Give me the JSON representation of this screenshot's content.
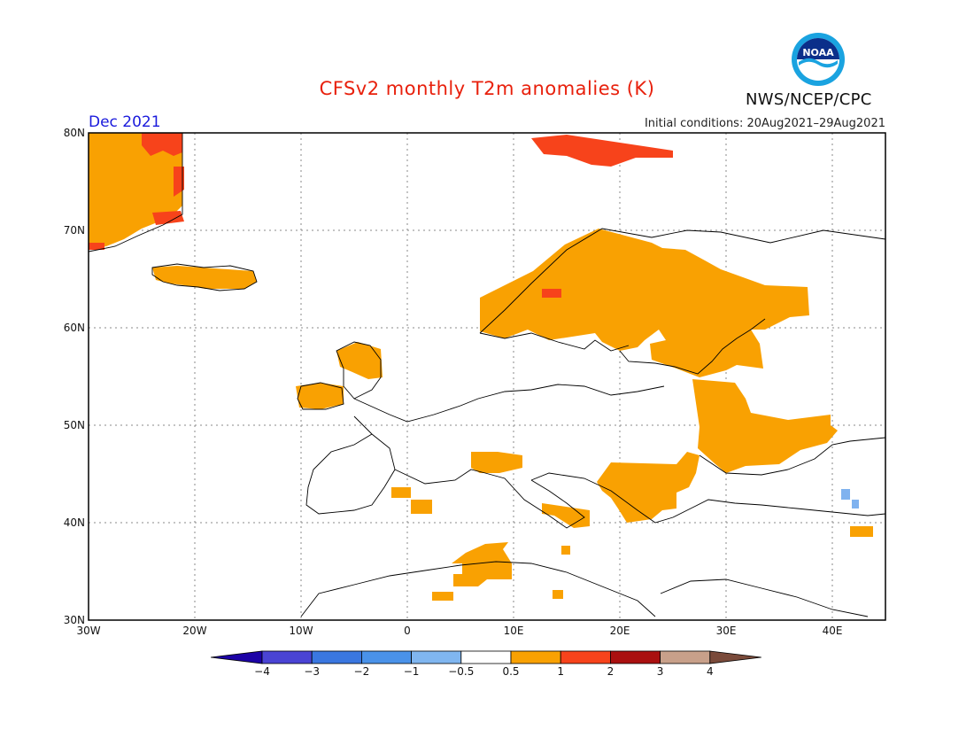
{
  "header": {
    "title": "CFSv2 monthly T2m anomalies (K)",
    "period": "Dec 2021",
    "initial_conditions": "Initial conditions: 20Aug2021–29Aug2021",
    "organization": "NWS/NCEP/CPC",
    "logo_text": "NOAA"
  },
  "map": {
    "projection": "lat-lon",
    "lon_range": [
      -30,
      45
    ],
    "lat_range": [
      30,
      80
    ],
    "lat_ticks": [
      "30N",
      "40N",
      "50N",
      "60N",
      "70N",
      "80N"
    ],
    "lon_ticks": [
      "30W",
      "20W",
      "10W",
      "0",
      "10E",
      "20E",
      "30E",
      "40E"
    ],
    "grid": true,
    "colors": {
      "ocean": "#ffffff",
      "coast": "#000000",
      "grid": "#8a8a8a",
      "warm_05_1": "#f9a102",
      "warm_1_2": "#f7431b",
      "cool_m1_m05": "#7fb2ef"
    }
  },
  "legend": {
    "levels": [
      "-4",
      "-3",
      "-2",
      "-1",
      "-0.5",
      "0.5",
      "1",
      "2",
      "3",
      "4"
    ],
    "colors": [
      "#1c02a6",
      "#4a44d4",
      "#3a77e0",
      "#4a92e9",
      "#80b6f0",
      "#ffffff",
      "#f9a102",
      "#f7431b",
      "#aa1010",
      "#c8a08a",
      "#7a4a3a"
    ]
  }
}
